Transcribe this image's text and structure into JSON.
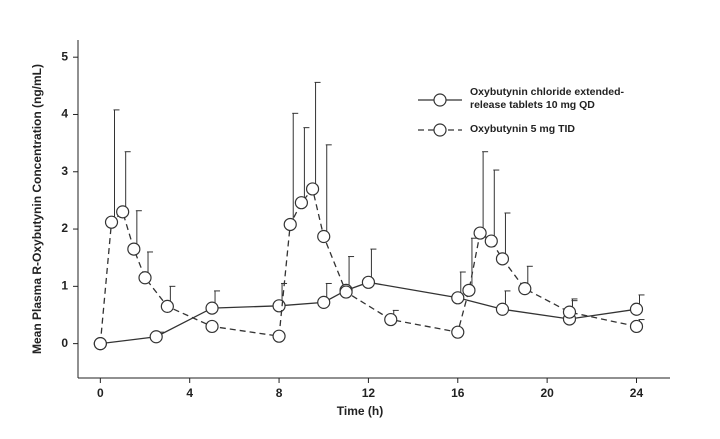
{
  "chart_data": {
    "type": "line",
    "x_label": "Time (h)",
    "y_label": "Mean Plasma R-Oxybutynin Concentration (ng/mL)",
    "xlim": [
      -1,
      25.5
    ],
    "ylim": [
      -0.6,
      5.3
    ],
    "xticks": [
      0,
      4,
      8,
      12,
      16,
      20,
      24
    ],
    "yticks": [
      0,
      1,
      2,
      3,
      4,
      5
    ],
    "series": [
      {
        "name": "Oxybutynin  chloride extended-release tablets 10 mg QD",
        "color": "#333333",
        "dash": false,
        "x": [
          0,
          2.5,
          5,
          8,
          10,
          11,
          12,
          16,
          18,
          21,
          24
        ],
        "values": [
          0,
          0.12,
          0.62,
          0.66,
          0.72,
          0.93,
          1.07,
          0.8,
          0.6,
          0.43,
          0.6
        ],
        "errors": [
          null,
          0.08,
          0.3,
          0.39,
          0.33,
          0.59,
          0.58,
          0.45,
          0.32,
          0.35,
          0.25
        ]
      },
      {
        "name": "Oxybutynin  5 mg TID",
        "color": "#333333",
        "dash": true,
        "x": [
          0,
          0.5,
          1,
          1.5,
          2,
          3,
          5,
          8,
          8.5,
          9,
          9.5,
          10,
          11,
          13,
          16,
          16.5,
          17,
          17.5,
          18,
          19,
          21,
          24
        ],
        "values": [
          0,
          2.12,
          2.3,
          1.65,
          1.15,
          0.65,
          0.3,
          0.13,
          2.08,
          2.46,
          2.7,
          1.87,
          0.9,
          0.42,
          0.2,
          0.93,
          1.93,
          1.79,
          1.48,
          0.96,
          0.55,
          0.3
        ],
        "errors": [
          null,
          1.96,
          1.05,
          0.67,
          0.45,
          0.35,
          null,
          null,
          1.94,
          1.31,
          1.86,
          1.6,
          null,
          0.16,
          null,
          0.91,
          1.42,
          1.24,
          0.8,
          0.39,
          0.2,
          0.12
        ]
      }
    ]
  }
}
